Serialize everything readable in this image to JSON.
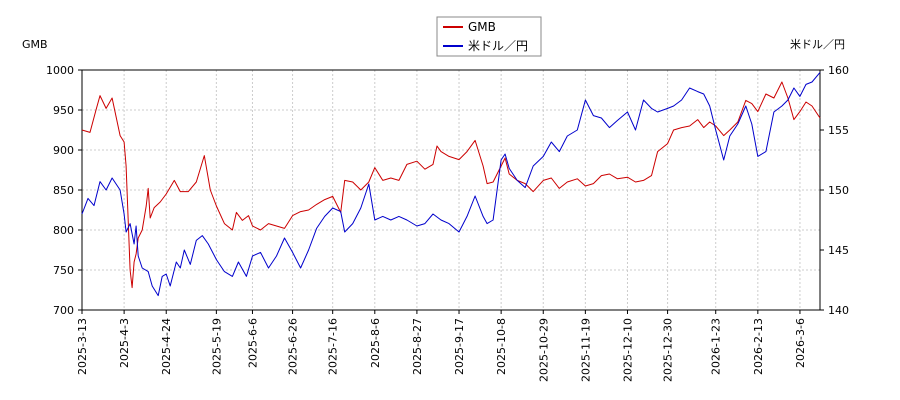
{
  "chart_data": {
    "type": "line",
    "y_left_label": "GMB",
    "y_right_label": "米ドル／円",
    "y_left_ticks": [
      "700",
      "750",
      "800",
      "850",
      "900",
      "950",
      "1000"
    ],
    "y_right_ticks": [
      "140",
      "145",
      "150",
      "155",
      "160"
    ],
    "ylim_left": [
      700,
      1000
    ],
    "ylim_right": [
      140,
      160
    ],
    "x_tick_labels": [
      "2025-3-13",
      "2025-4-3",
      "2025-4-24",
      "2025-5-19",
      "2025-6-6",
      "2025-6-26",
      "2025-7-16",
      "2025-8-6",
      "2025-8-27",
      "2025-9-17",
      "2025-10-8",
      "2025-10-29",
      "2025-11-19",
      "2025-12-10",
      "2025-12-30",
      "2026-1-23",
      "2026-2-13",
      "2026-3-6"
    ],
    "xlim": [
      "2025-03-13",
      "2026-03-16"
    ],
    "grid": true,
    "legend_position": "top-center",
    "colors": {
      "gmb": "#cc0000",
      "usdjpy": "#0000cc",
      "grid": "#cccccc"
    },
    "series": [
      {
        "name": "GMB",
        "axis": "left",
        "color": "#cc0000",
        "points": [
          [
            "2025-03-13",
            925
          ],
          [
            "2025-03-17",
            922
          ],
          [
            "2025-03-20",
            950
          ],
          [
            "2025-03-22",
            968
          ],
          [
            "2025-03-25",
            952
          ],
          [
            "2025-03-28",
            965
          ],
          [
            "2025-04-01",
            918
          ],
          [
            "2025-04-03",
            910
          ],
          [
            "2025-04-04",
            880
          ],
          [
            "2025-04-05",
            815
          ],
          [
            "2025-04-06",
            750
          ],
          [
            "2025-04-07",
            728
          ],
          [
            "2025-04-08",
            760
          ],
          [
            "2025-04-09",
            770
          ],
          [
            "2025-04-10",
            790
          ],
          [
            "2025-04-12",
            800
          ],
          [
            "2025-04-14",
            830
          ],
          [
            "2025-04-15",
            852
          ],
          [
            "2025-04-16",
            815
          ],
          [
            "2025-04-18",
            828
          ],
          [
            "2025-04-21",
            835
          ],
          [
            "2025-04-24",
            845
          ],
          [
            "2025-04-28",
            862
          ],
          [
            "2025-05-01",
            848
          ],
          [
            "2025-05-05",
            848
          ],
          [
            "2025-05-09",
            860
          ],
          [
            "2025-05-13",
            893
          ],
          [
            "2025-05-16",
            850
          ],
          [
            "2025-05-19",
            830
          ],
          [
            "2025-05-23",
            808
          ],
          [
            "2025-05-27",
            800
          ],
          [
            "2025-05-29",
            822
          ],
          [
            "2025-06-01",
            812
          ],
          [
            "2025-06-04",
            818
          ],
          [
            "2025-06-06",
            805
          ],
          [
            "2025-06-10",
            800
          ],
          [
            "2025-06-14",
            808
          ],
          [
            "2025-06-18",
            805
          ],
          [
            "2025-06-22",
            802
          ],
          [
            "2025-06-26",
            818
          ],
          [
            "2025-06-30",
            823
          ],
          [
            "2025-07-04",
            825
          ],
          [
            "2025-07-08",
            832
          ],
          [
            "2025-07-12",
            838
          ],
          [
            "2025-07-16",
            842
          ],
          [
            "2025-07-20",
            822
          ],
          [
            "2025-07-22",
            862
          ],
          [
            "2025-07-26",
            860
          ],
          [
            "2025-07-30",
            850
          ],
          [
            "2025-08-03",
            860
          ],
          [
            "2025-08-06",
            878
          ],
          [
            "2025-08-10",
            862
          ],
          [
            "2025-08-14",
            865
          ],
          [
            "2025-08-18",
            862
          ],
          [
            "2025-08-22",
            882
          ],
          [
            "2025-08-27",
            886
          ],
          [
            "2025-08-31",
            876
          ],
          [
            "2025-09-04",
            882
          ],
          [
            "2025-09-06",
            905
          ],
          [
            "2025-09-08",
            898
          ],
          [
            "2025-09-12",
            892
          ],
          [
            "2025-09-17",
            888
          ],
          [
            "2025-09-21",
            898
          ],
          [
            "2025-09-25",
            912
          ],
          [
            "2025-09-29",
            880
          ],
          [
            "2025-10-01",
            858
          ],
          [
            "2025-10-04",
            860
          ],
          [
            "2025-10-08",
            880
          ],
          [
            "2025-10-10",
            890
          ],
          [
            "2025-10-12",
            870
          ],
          [
            "2025-10-16",
            862
          ],
          [
            "2025-10-20",
            858
          ],
          [
            "2025-10-24",
            848
          ],
          [
            "2025-10-29",
            862
          ],
          [
            "2025-11-02",
            865
          ],
          [
            "2025-11-06",
            852
          ],
          [
            "2025-11-10",
            860
          ],
          [
            "2025-11-15",
            864
          ],
          [
            "2025-11-19",
            855
          ],
          [
            "2025-11-23",
            858
          ],
          [
            "2025-11-27",
            868
          ],
          [
            "2025-12-01",
            870
          ],
          [
            "2025-12-05",
            864
          ],
          [
            "2025-12-10",
            866
          ],
          [
            "2025-12-14",
            860
          ],
          [
            "2025-12-18",
            862
          ],
          [
            "2025-12-22",
            868
          ],
          [
            "2025-12-25",
            898
          ],
          [
            "2025-12-30",
            908
          ],
          [
            "2026-01-02",
            925
          ],
          [
            "2026-01-06",
            928
          ],
          [
            "2026-01-10",
            930
          ],
          [
            "2026-01-14",
            938
          ],
          [
            "2026-01-17",
            928
          ],
          [
            "2026-01-20",
            935
          ],
          [
            "2026-01-23",
            930
          ],
          [
            "2026-01-27",
            918
          ],
          [
            "2026-01-30",
            925
          ],
          [
            "2026-02-03",
            935
          ],
          [
            "2026-02-07",
            962
          ],
          [
            "2026-02-10",
            958
          ],
          [
            "2026-02-13",
            948
          ],
          [
            "2026-02-17",
            970
          ],
          [
            "2026-02-21",
            965
          ],
          [
            "2026-02-25",
            985
          ],
          [
            "2026-02-28",
            965
          ],
          [
            "2026-03-03",
            938
          ],
          [
            "2026-03-06",
            948
          ],
          [
            "2026-03-09",
            960
          ],
          [
            "2026-03-12",
            955
          ],
          [
            "2026-03-16",
            940
          ]
        ]
      },
      {
        "name": "米ドル／円",
        "axis": "right",
        "color": "#0000cc",
        "points": [
          [
            "2025-03-13",
            148.0
          ],
          [
            "2025-03-16",
            149.3
          ],
          [
            "2025-03-19",
            148.7
          ],
          [
            "2025-03-22",
            150.7
          ],
          [
            "2025-03-25",
            150.0
          ],
          [
            "2025-03-28",
            151.0
          ],
          [
            "2025-04-01",
            150.0
          ],
          [
            "2025-04-03",
            148.0
          ],
          [
            "2025-04-04",
            146.5
          ],
          [
            "2025-04-06",
            147.2
          ],
          [
            "2025-04-08",
            145.5
          ],
          [
            "2025-04-09",
            147.0
          ],
          [
            "2025-04-10",
            144.5
          ],
          [
            "2025-04-12",
            143.5
          ],
          [
            "2025-04-15",
            143.2
          ],
          [
            "2025-04-17",
            142.0
          ],
          [
            "2025-04-20",
            141.2
          ],
          [
            "2025-04-22",
            142.8
          ],
          [
            "2025-04-24",
            143.0
          ],
          [
            "2025-04-26",
            142.0
          ],
          [
            "2025-04-29",
            144.0
          ],
          [
            "2025-05-01",
            143.5
          ],
          [
            "2025-05-03",
            145.0
          ],
          [
            "2025-05-06",
            143.8
          ],
          [
            "2025-05-09",
            145.8
          ],
          [
            "2025-05-12",
            146.2
          ],
          [
            "2025-05-15",
            145.5
          ],
          [
            "2025-05-19",
            144.2
          ],
          [
            "2025-05-23",
            143.2
          ],
          [
            "2025-05-27",
            142.8
          ],
          [
            "2025-05-30",
            144.0
          ],
          [
            "2025-06-03",
            142.8
          ],
          [
            "2025-06-06",
            144.5
          ],
          [
            "2025-06-10",
            144.8
          ],
          [
            "2025-06-14",
            143.5
          ],
          [
            "2025-06-18",
            144.5
          ],
          [
            "2025-06-22",
            146.0
          ],
          [
            "2025-06-26",
            144.8
          ],
          [
            "2025-06-30",
            143.5
          ],
          [
            "2025-07-04",
            145.0
          ],
          [
            "2025-07-08",
            146.8
          ],
          [
            "2025-07-12",
            147.8
          ],
          [
            "2025-07-16",
            148.5
          ],
          [
            "2025-07-20",
            148.2
          ],
          [
            "2025-07-22",
            146.5
          ],
          [
            "2025-07-26",
            147.2
          ],
          [
            "2025-07-30",
            148.5
          ],
          [
            "2025-08-03",
            150.5
          ],
          [
            "2025-08-06",
            147.5
          ],
          [
            "2025-08-10",
            147.8
          ],
          [
            "2025-08-14",
            147.5
          ],
          [
            "2025-08-18",
            147.8
          ],
          [
            "2025-08-22",
            147.5
          ],
          [
            "2025-08-27",
            147.0
          ],
          [
            "2025-08-31",
            147.2
          ],
          [
            "2025-09-04",
            148.0
          ],
          [
            "2025-09-08",
            147.5
          ],
          [
            "2025-09-12",
            147.2
          ],
          [
            "2025-09-17",
            146.5
          ],
          [
            "2025-09-21",
            147.8
          ],
          [
            "2025-09-25",
            149.5
          ],
          [
            "2025-09-29",
            147.8
          ],
          [
            "2025-10-01",
            147.2
          ],
          [
            "2025-10-04",
            147.5
          ],
          [
            "2025-10-08",
            152.5
          ],
          [
            "2025-10-10",
            153.0
          ],
          [
            "2025-10-12",
            151.8
          ],
          [
            "2025-10-16",
            150.8
          ],
          [
            "2025-10-20",
            150.2
          ],
          [
            "2025-10-24",
            152.0
          ],
          [
            "2025-10-29",
            152.8
          ],
          [
            "2025-11-02",
            154.0
          ],
          [
            "2025-11-06",
            153.2
          ],
          [
            "2025-11-10",
            154.5
          ],
          [
            "2025-11-15",
            155.0
          ],
          [
            "2025-11-19",
            157.5
          ],
          [
            "2025-11-23",
            156.2
          ],
          [
            "2025-11-27",
            156.0
          ],
          [
            "2025-12-01",
            155.2
          ],
          [
            "2025-12-05",
            155.8
          ],
          [
            "2025-12-10",
            156.5
          ],
          [
            "2025-12-14",
            155.0
          ],
          [
            "2025-12-18",
            157.5
          ],
          [
            "2025-12-22",
            156.8
          ],
          [
            "2025-12-25",
            156.5
          ],
          [
            "2025-12-30",
            156.8
          ],
          [
            "2026-01-02",
            157.0
          ],
          [
            "2026-01-06",
            157.5
          ],
          [
            "2026-01-10",
            158.5
          ],
          [
            "2026-01-14",
            158.2
          ],
          [
            "2026-01-17",
            158.0
          ],
          [
            "2026-01-20",
            157.0
          ],
          [
            "2026-01-23",
            155.0
          ],
          [
            "2026-01-27",
            152.5
          ],
          [
            "2026-01-30",
            154.5
          ],
          [
            "2026-02-03",
            155.5
          ],
          [
            "2026-02-07",
            157.0
          ],
          [
            "2026-02-10",
            155.5
          ],
          [
            "2026-02-13",
            152.8
          ],
          [
            "2026-02-17",
            153.2
          ],
          [
            "2026-02-21",
            156.5
          ],
          [
            "2026-02-25",
            157.0
          ],
          [
            "2026-02-28",
            157.5
          ],
          [
            "2026-03-03",
            158.5
          ],
          [
            "2026-03-06",
            157.8
          ],
          [
            "2026-03-09",
            158.8
          ],
          [
            "2026-03-12",
            159.0
          ],
          [
            "2026-03-16",
            159.8
          ]
        ]
      }
    ]
  }
}
